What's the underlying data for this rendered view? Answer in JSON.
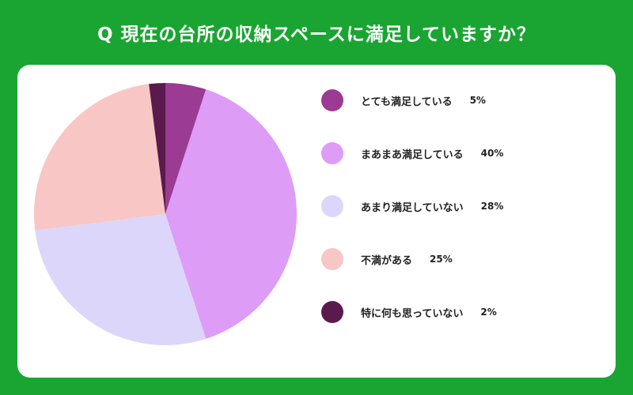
{
  "header": {
    "title": "Q 現在の台所の収納スペースに満足していますか？"
  },
  "colors": {
    "background": "#1aa532",
    "card": "#ffffff"
  },
  "chart_data": {
    "type": "pie",
    "title": "Q 現在の台所の収納スペースに満足していますか？",
    "legend": "right",
    "slices": [
      {
        "label": "とても満足している",
        "value": 5,
        "value_label": "5%",
        "color": "#9b3b93"
      },
      {
        "label": "まあまあ満足している",
        "value": 40,
        "value_label": "40%",
        "color": "#dd9cf6"
      },
      {
        "label": "あまり満足していない",
        "value": 28,
        "value_label": "28%",
        "color": "#dcd6fb"
      },
      {
        "label": "不満がある",
        "value": 25,
        "value_label": "25%",
        "color": "#f8c6c4"
      },
      {
        "label": "特に何も思っていない",
        "value": 2,
        "value_label": "2%",
        "color": "#5a1a4d"
      }
    ]
  }
}
